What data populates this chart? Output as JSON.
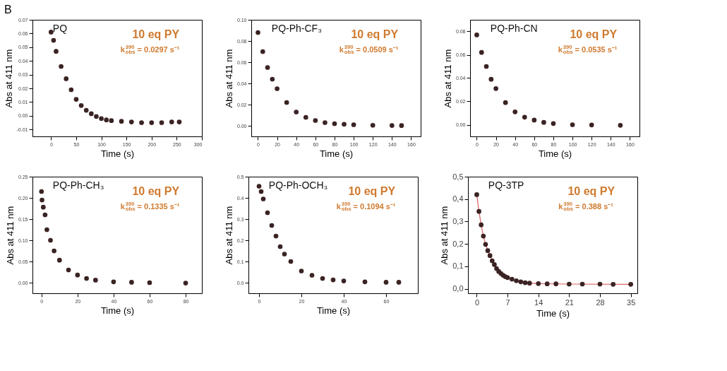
{
  "chart_data": [
    {
      "type": "scatter",
      "title": "B",
      "xlabel": "Time (s)",
      "ylabel": "Abs at 411 nm",
      "xlim": [
        -37,
        300
      ],
      "ylim": [
        -0.015,
        0.07
      ],
      "xticks": [
        0,
        50,
        100,
        150,
        200,
        250,
        300
      ],
      "yticks": [
        {
          "value": -0.01,
          "label": "-0.01"
        },
        {
          "value": 0,
          "label": "0.00"
        },
        {
          "value": 0.01,
          "label": "0.01"
        },
        {
          "value": 0.02,
          "label": "0.02"
        },
        {
          "value": 0.03,
          "label": "0.03"
        },
        {
          "value": 0.04,
          "label": "0.04"
        },
        {
          "value": 0.05,
          "label": "0.05"
        },
        {
          "value": 0.06,
          "label": "0.06"
        },
        {
          "value": 0.07,
          "label": "0.07"
        }
      ],
      "grid": false,
      "marker": "circle",
      "annotations": [
        "PQ",
        "10 eq PY",
        "k$_{obs}$$^{390}$ = 0.0297 s⁻¹"
      ],
      "series": [
        {
          "type": "scatter",
          "color": "#3b2323",
          "x": [
            0,
            5,
            10,
            20,
            30,
            40,
            50,
            60,
            70,
            80,
            90,
            100,
            110,
            120,
            140,
            160,
            180,
            200,
            220,
            240,
            255
          ],
          "values": [
            0.061,
            0.055,
            0.047,
            0.036,
            0.027,
            0.019,
            0.012,
            0.0075,
            0.004,
            0.0015,
            -0.0005,
            -0.002,
            -0.003,
            -0.0035,
            -0.004,
            -0.0045,
            -0.005,
            -0.005,
            -0.005,
            -0.0045,
            -0.0045
          ]
        }
      ]
    },
    {
      "type": "scatter",
      "xlabel": "Time (s)",
      "ylabel": "Abs at 411 nm",
      "xlim": [
        -7,
        170
      ],
      "ylim": [
        -0.01,
        0.1
      ],
      "xticks": [
        0,
        20,
        40,
        60,
        80,
        100,
        120,
        140,
        160
      ],
      "yticks": [
        {
          "value": 0,
          "label": "0.00"
        },
        {
          "value": 0.02,
          "label": "0.02"
        },
        {
          "value": 0.04,
          "label": "0.04"
        },
        {
          "value": 0.06,
          "label": "0.06"
        },
        {
          "value": 0.08,
          "label": "0.08"
        },
        {
          "value": 0.1,
          "label": "0.10"
        }
      ],
      "grid": false,
      "marker": "circle",
      "annotations": [
        "PQ-Ph-CF₃",
        "10 eq PY",
        "k$_{obs}$$^{390}$ = 0.0509 s⁻¹"
      ],
      "series": [
        {
          "type": "scatter",
          "color": "#3b2323",
          "x": [
            0,
            5,
            10,
            15,
            20,
            30,
            40,
            50,
            60,
            70,
            80,
            90,
            100,
            120,
            140,
            150
          ],
          "values": [
            0.088,
            0.07,
            0.055,
            0.044,
            0.035,
            0.022,
            0.013,
            0.008,
            0.005,
            0.003,
            0.002,
            0.0015,
            0.001,
            0.0005,
            0.0003,
            0.0002
          ]
        }
      ]
    },
    {
      "type": "scatter",
      "xlabel": "Time (s)",
      "ylabel": "Abs at 411 nm",
      "xlim": [
        -7,
        170
      ],
      "ylim": [
        -0.01,
        0.09
      ],
      "xticks": [
        0,
        20,
        40,
        60,
        80,
        100,
        120,
        140,
        160
      ],
      "yticks": [
        {
          "value": 0,
          "label": "0.00"
        },
        {
          "value": 0.02,
          "label": "0.02"
        },
        {
          "value": 0.04,
          "label": "0.04"
        },
        {
          "value": 0.06,
          "label": "0.06"
        },
        {
          "value": 0.08,
          "label": "0.08"
        }
      ],
      "grid": false,
      "marker": "circle",
      "annotations": [
        "PQ-Ph-CN",
        "10 eq PY",
        "k$_{obs}$$^{390}$ = 0.0535 s⁻¹"
      ],
      "series": [
        {
          "type": "scatter",
          "color": "#3b2323",
          "x": [
            0,
            5,
            10,
            15,
            20,
            30,
            40,
            50,
            60,
            70,
            80,
            100,
            120,
            150
          ],
          "values": [
            0.077,
            0.062,
            0.05,
            0.039,
            0.031,
            0.019,
            0.011,
            0.0065,
            0.004,
            0.002,
            0.001,
            0.0,
            -0.0002,
            -0.0005
          ]
        }
      ]
    },
    {
      "type": "scatter",
      "xlabel": "Time (s)",
      "ylabel": "Abs at 411 nm",
      "xlim": [
        -5,
        89
      ],
      "ylim": [
        -0.025,
        0.25
      ],
      "xticks": [
        0,
        20,
        40,
        60,
        80
      ],
      "yticks": [
        {
          "value": 0,
          "label": "0.00"
        },
        {
          "value": 0.05,
          "label": "0.05"
        },
        {
          "value": 0.1,
          "label": "0.10"
        },
        {
          "value": 0.15,
          "label": "0.15"
        },
        {
          "value": 0.2,
          "label": "0.20"
        },
        {
          "value": 0.25,
          "label": "0.25"
        }
      ],
      "grid": false,
      "marker": "circle",
      "annotations": [
        "PQ-Ph-CH₃",
        "10 eq PY",
        "k$_{obs}$$^{390}$ = 0.1335 s⁻¹"
      ],
      "series": [
        {
          "type": "scatter",
          "color": "#3b2323",
          "x": [
            0,
            0.3,
            1,
            2,
            3,
            5,
            7,
            10,
            15,
            20,
            25,
            30,
            40,
            50,
            60,
            80
          ],
          "values": [
            0.215,
            0.195,
            0.178,
            0.16,
            0.125,
            0.1,
            0.075,
            0.053,
            0.03,
            0.018,
            0.01,
            0.006,
            0.002,
            0.001,
            0.0,
            -0.001
          ]
        }
      ]
    },
    {
      "type": "scatter",
      "xlabel": "Time (s)",
      "ylabel": "Abs at 411 nm",
      "xlim": [
        -5,
        75
      ],
      "ylim": [
        -0.05,
        0.5
      ],
      "xticks": [
        0,
        20,
        40,
        60
      ],
      "yticks": [
        {
          "value": 0,
          "label": "0.0"
        },
        0.1,
        0.2,
        0.3,
        0.4,
        0.5
      ],
      "grid": false,
      "marker": "circle",
      "annotations": [
        "PQ-Ph-OCH₃",
        "10 eq PY",
        "k$_{obs}$$^{390}$ = 0.1094 s⁻¹"
      ],
      "series": [
        {
          "type": "scatter",
          "color": "#3b2323",
          "x": [
            0,
            1,
            2,
            4,
            6,
            8,
            10,
            12,
            15,
            20,
            25,
            30,
            35,
            40,
            50,
            60,
            66
          ],
          "values": [
            0.455,
            0.43,
            0.395,
            0.33,
            0.27,
            0.22,
            0.17,
            0.135,
            0.1,
            0.055,
            0.035,
            0.02,
            0.013,
            0.008,
            0.004,
            0.002,
            0.002
          ]
        }
      ]
    },
    {
      "type": "scatter",
      "xlabel": "Time (s)",
      "ylabel": "Abs at 411 nm",
      "xlim": [
        -2,
        36.5
      ],
      "ylim": [
        -0.02,
        0.5
      ],
      "xticks": [
        0,
        7,
        14,
        21,
        28,
        35
      ],
      "yticks": [
        {
          "value": 0,
          "label": "0,0"
        },
        {
          "value": 0.1,
          "label": "0,1"
        },
        {
          "value": 0.2,
          "label": "0,2"
        },
        {
          "value": 0.3,
          "label": "0,3"
        },
        {
          "value": 0.4,
          "label": "0,4"
        },
        {
          "value": 0.5,
          "label": "0,5"
        }
      ],
      "grid": false,
      "marker": "circle",
      "annotations": [
        "PQ-3TP",
        "10 eq PY",
        "k$_{obs}$$^{390}$ = 0.388 s⁻¹"
      ],
      "series": [
        {
          "type": "line",
          "marker": "none",
          "color": "#e06060",
          "x": [
            0,
            0.5,
            1,
            1.5,
            2,
            3,
            4,
            5,
            6,
            7,
            9,
            11,
            14,
            21,
            35
          ],
          "values": [
            0.42,
            0.345,
            0.285,
            0.235,
            0.198,
            0.148,
            0.108,
            0.077,
            0.06,
            0.05,
            0.036,
            0.027,
            0.023,
            0.021,
            0.02
          ]
        },
        {
          "type": "scatter",
          "color": "#3b2323",
          "x": [
            0,
            0.5,
            1,
            1.5,
            2,
            2.5,
            3,
            3.5,
            4,
            4.5,
            5,
            5.5,
            6,
            6.5,
            7,
            8,
            9,
            10,
            11,
            12,
            14,
            16,
            18,
            21,
            24,
            28,
            31,
            35
          ],
          "values": [
            0.42,
            0.345,
            0.285,
            0.235,
            0.198,
            0.17,
            0.148,
            0.125,
            0.108,
            0.09,
            0.077,
            0.068,
            0.06,
            0.054,
            0.05,
            0.043,
            0.036,
            0.031,
            0.027,
            0.025,
            0.023,
            0.022,
            0.022,
            0.021,
            0.021,
            0.021,
            0.02,
            0.02
          ]
        }
      ]
    }
  ]
}
